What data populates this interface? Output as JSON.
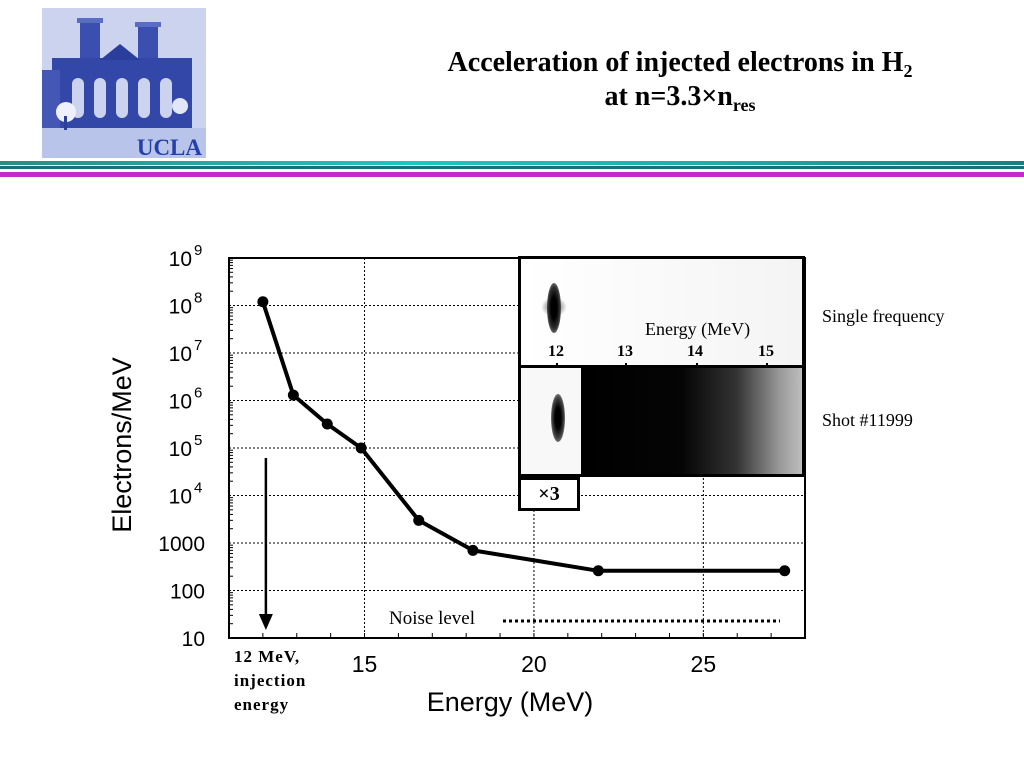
{
  "header": {
    "logo_text": "UCLA",
    "title_line1": "Acceleration of injected electrons in H",
    "title_line1_sub": "2",
    "title_line2": "at n=3.3×n",
    "title_line2_sub": "res"
  },
  "colors": {
    "rule_teal": "#1ec4c8",
    "rule_magenta": "#c02cc9",
    "logo_background": "#cbd3ef",
    "logo_text": "#2540a8"
  },
  "annotations": {
    "single_frequency": "Single frequency",
    "shot": "Shot #11999",
    "inset_energy_label": "Energy (MeV)",
    "inset_ticks": [
      "12",
      "13",
      "14",
      "15"
    ],
    "magnification": "×3",
    "injection_line1": "12 MeV,",
    "injection_line2": "injection",
    "injection_line3": "energy",
    "noise_level": "Noise level"
  },
  "chart_data": {
    "type": "line",
    "title": "",
    "xlabel": "Energy (MeV)",
    "ylabel": "Electrons/MeV",
    "xlim": [
      11,
      28
    ],
    "ylim": [
      10,
      1000000000
    ],
    "y_scale": "log",
    "x_ticks": [
      15,
      20,
      25
    ],
    "x_tick_labels": [
      "15",
      "20",
      "25"
    ],
    "y_ticks": [
      1000000000,
      100000000,
      10000000,
      1000000,
      100000,
      10000,
      1000,
      100,
      10
    ],
    "y_tick_labels": [
      {
        "base": "10",
        "exp": "9"
      },
      {
        "base": "10",
        "exp": "8"
      },
      {
        "base": "10",
        "exp": "7"
      },
      {
        "base": "10",
        "exp": "6"
      },
      {
        "base": "10",
        "exp": "5"
      },
      {
        "base": "10",
        "exp": "4"
      },
      {
        "base": "1000",
        "exp": ""
      },
      {
        "base": "100",
        "exp": ""
      },
      {
        "base": "10",
        "exp": ""
      }
    ],
    "grid": true,
    "series": [
      {
        "x": [
          12.0,
          12.9,
          13.9,
          14.9,
          16.6,
          18.2,
          21.9,
          27.4
        ],
        "y": [
          120000000,
          1300000,
          320000,
          100000,
          3000,
          700,
          260,
          260
        ]
      }
    ],
    "injection_energy": 12,
    "noise_level": 25
  }
}
